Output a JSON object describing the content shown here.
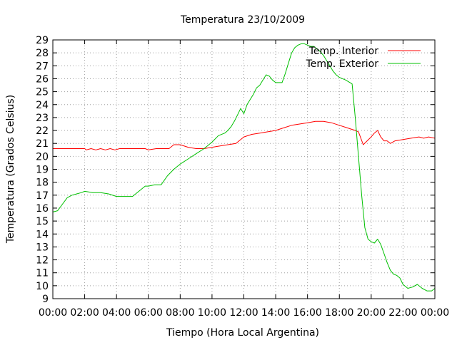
{
  "chart_data": {
    "type": "line",
    "title": "Temperatura 23/10/2009",
    "xlabel": "Tiempo (Hora Local Argentina)",
    "ylabel": "Temperatura (Grados Celsius)",
    "xlim": [
      0,
      24
    ],
    "ylim": [
      9,
      29
    ],
    "grid": true,
    "legend_position": "top-right",
    "x_ticks": [
      {
        "value": 0,
        "label": "00:00"
      },
      {
        "value": 2,
        "label": "02:00"
      },
      {
        "value": 4,
        "label": "04:00"
      },
      {
        "value": 6,
        "label": "06:00"
      },
      {
        "value": 8,
        "label": "08:00"
      },
      {
        "value": 10,
        "label": "10:00"
      },
      {
        "value": 12,
        "label": "12:00"
      },
      {
        "value": 14,
        "label": "14:00"
      },
      {
        "value": 16,
        "label": "16:00"
      },
      {
        "value": 18,
        "label": "18:00"
      },
      {
        "value": 20,
        "label": "20:00"
      },
      {
        "value": 22,
        "label": "22:00"
      },
      {
        "value": 24,
        "label": "00:00"
      }
    ],
    "y_ticks": [
      9,
      10,
      11,
      12,
      13,
      14,
      15,
      16,
      17,
      18,
      19,
      20,
      21,
      22,
      23,
      24,
      25,
      26,
      27,
      28,
      29
    ],
    "series": [
      {
        "name": "Temp. Interior",
        "color": "#ff0000",
        "x": [
          0,
          1,
          2,
          2.1,
          2.4,
          2.7,
          3.0,
          3.3,
          3.6,
          3.9,
          4.2,
          5.0,
          5.8,
          6.0,
          6.5,
          7.0,
          7.3,
          7.6,
          8.0,
          8.5,
          9.0,
          9.5,
          10.0,
          10.5,
          11.0,
          11.5,
          12.0,
          12.5,
          13.0,
          13.5,
          14.0,
          14.5,
          15.0,
          15.5,
          16.0,
          16.5,
          17.0,
          17.5,
          18.0,
          18.5,
          19.0,
          19.2,
          19.5,
          20.0,
          20.2,
          20.4,
          20.6,
          20.8,
          21.0,
          21.2,
          21.5,
          22.0,
          22.5,
          23.0,
          23.3,
          23.6,
          24.0
        ],
        "values": [
          20.6,
          20.6,
          20.6,
          20.5,
          20.6,
          20.5,
          20.6,
          20.5,
          20.6,
          20.5,
          20.6,
          20.6,
          20.6,
          20.5,
          20.6,
          20.6,
          20.6,
          20.9,
          20.9,
          20.7,
          20.6,
          20.6,
          20.7,
          20.8,
          20.9,
          21.0,
          21.5,
          21.7,
          21.8,
          21.9,
          22.0,
          22.2,
          22.4,
          22.5,
          22.6,
          22.7,
          22.7,
          22.6,
          22.4,
          22.2,
          22.0,
          21.9,
          20.9,
          21.5,
          21.8,
          22.0,
          21.5,
          21.2,
          21.2,
          21.0,
          21.2,
          21.3,
          21.4,
          21.5,
          21.4,
          21.5,
          21.4
        ]
      },
      {
        "name": "Temp. Exterior",
        "color": "#00c000",
        "x": [
          0,
          0.3,
          0.6,
          0.9,
          1.2,
          1.5,
          1.8,
          2.0,
          2.5,
          3.0,
          3.5,
          4.0,
          4.3,
          4.6,
          5.0,
          5.4,
          5.8,
          6.0,
          6.4,
          6.8,
          7.2,
          7.6,
          8.0,
          8.5,
          9.0,
          9.5,
          10.0,
          10.4,
          10.8,
          11.0,
          11.2,
          11.4,
          11.6,
          11.8,
          12.0,
          12.2,
          12.4,
          12.6,
          12.8,
          13.0,
          13.2,
          13.4,
          13.6,
          13.8,
          14.0,
          14.2,
          14.4,
          14.6,
          14.8,
          15.0,
          15.2,
          15.4,
          15.6,
          15.8,
          16.0,
          16.2,
          16.4,
          16.6,
          16.8,
          17.0,
          17.2,
          17.4,
          17.6,
          17.8,
          18.0,
          18.4,
          18.8,
          19.0,
          19.2,
          19.4,
          19.6,
          19.8,
          20.0,
          20.2,
          20.4,
          20.6,
          20.8,
          21.0,
          21.2,
          21.4,
          21.6,
          21.8,
          22.0,
          22.3,
          22.6,
          22.9,
          23.2,
          23.5,
          23.8,
          24.0
        ],
        "values": [
          15.7,
          15.8,
          16.3,
          16.8,
          17.0,
          17.1,
          17.2,
          17.3,
          17.2,
          17.2,
          17.1,
          16.9,
          16.9,
          16.9,
          16.9,
          17.3,
          17.7,
          17.7,
          17.8,
          17.8,
          18.5,
          19.0,
          19.4,
          19.8,
          20.2,
          20.6,
          21.1,
          21.6,
          21.8,
          22.0,
          22.3,
          22.7,
          23.2,
          23.7,
          23.3,
          24.0,
          24.4,
          24.8,
          25.3,
          25.5,
          25.9,
          26.3,
          26.2,
          25.9,
          25.7,
          25.7,
          25.7,
          26.4,
          27.2,
          28.0,
          28.4,
          28.6,
          28.7,
          28.7,
          28.6,
          28.5,
          28.5,
          28.3,
          28.1,
          27.8,
          27.4,
          27.0,
          26.6,
          26.3,
          26.1,
          25.9,
          25.6,
          23.0,
          20.0,
          17.0,
          14.5,
          13.6,
          13.4,
          13.3,
          13.6,
          13.2,
          12.5,
          11.8,
          11.2,
          10.9,
          10.8,
          10.6,
          10.1,
          9.8,
          9.9,
          10.1,
          9.8,
          9.6,
          9.6,
          9.8
        ]
      }
    ]
  }
}
